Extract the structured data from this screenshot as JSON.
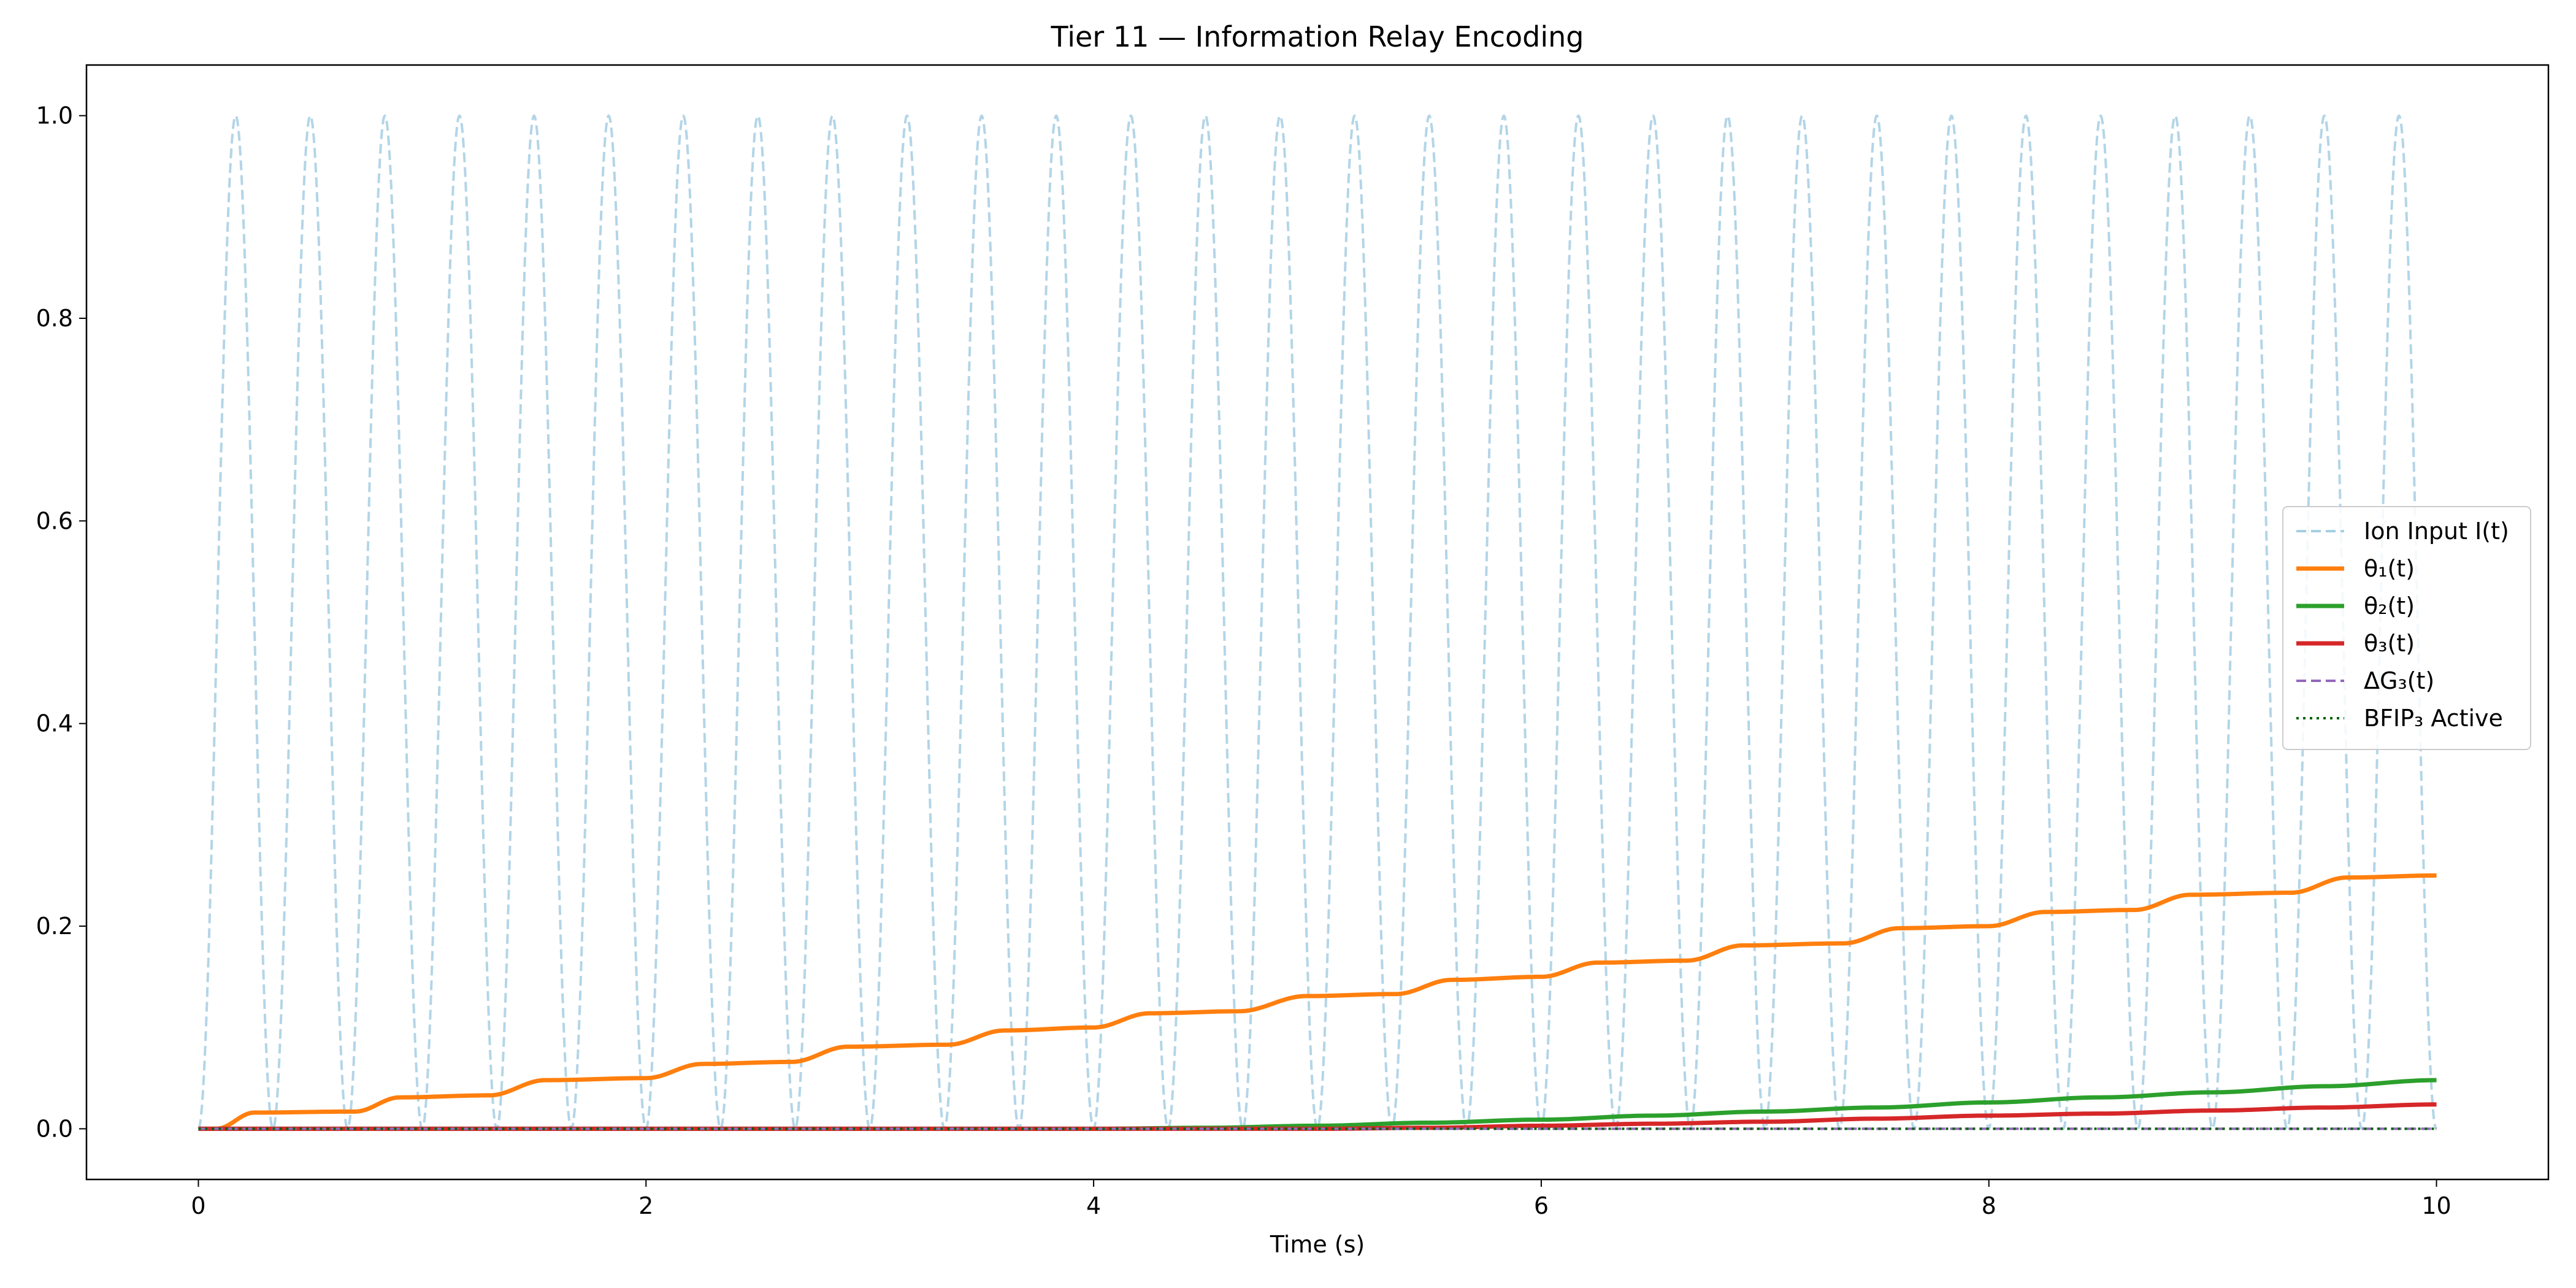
{
  "chart_data": {
    "type": "line",
    "title": "Tier 11 — Information Relay Encoding",
    "xlabel": "Time (s)",
    "ylabel": "",
    "xlim": [
      -0.5,
      10.5
    ],
    "ylim": [
      -0.05,
      1.05
    ],
    "xticks": [
      0,
      2,
      4,
      6,
      8,
      10
    ],
    "yticks": [
      0.0,
      0.2,
      0.4,
      0.6,
      0.8,
      1.0
    ],
    "xtick_labels": [
      "0",
      "2",
      "4",
      "6",
      "8",
      "10"
    ],
    "ytick_labels": [
      "0.0",
      "0.2",
      "0.4",
      "0.6",
      "0.8",
      "1.0"
    ],
    "grid": false,
    "legend_position": "center-right",
    "series": [
      {
        "name": "Ion Input I(t)",
        "color": "#a6cee3",
        "style": "dashed",
        "model": "periodic",
        "period_s": 0.3333,
        "min": 0.0,
        "max": 1.0
      },
      {
        "name": "θ₁(t)",
        "color": "#ff7f0e",
        "style": "solid",
        "x": [
          0,
          0.08,
          0.25,
          0.7,
          0.9,
          1.3,
          1.55,
          2.0,
          2.25,
          2.65,
          2.9,
          3.35,
          3.6,
          4.0,
          4.25,
          4.65,
          4.95,
          5.35,
          5.6,
          6.0,
          6.25,
          6.65,
          6.9,
          7.35,
          7.6,
          8.0,
          8.25,
          8.65,
          8.9,
          9.35,
          9.6,
          10.0
        ],
        "y": [
          0.0,
          0.0,
          0.016,
          0.017,
          0.031,
          0.033,
          0.048,
          0.05,
          0.064,
          0.066,
          0.081,
          0.083,
          0.097,
          0.1,
          0.114,
          0.116,
          0.131,
          0.133,
          0.147,
          0.15,
          0.164,
          0.166,
          0.181,
          0.183,
          0.198,
          0.2,
          0.214,
          0.216,
          0.231,
          0.233,
          0.248,
          0.25
        ]
      },
      {
        "name": "θ₂(t)",
        "color": "#2ca02c",
        "style": "solid",
        "x": [
          0,
          4.0,
          4.5,
          5.0,
          5.5,
          6.0,
          6.5,
          7.0,
          7.5,
          8.0,
          8.5,
          9.0,
          9.5,
          10.0
        ],
        "y": [
          0.0,
          0.0,
          0.001,
          0.003,
          0.006,
          0.009,
          0.013,
          0.017,
          0.021,
          0.026,
          0.031,
          0.036,
          0.042,
          0.048
        ]
      },
      {
        "name": "θ₃(t)",
        "color": "#d62728",
        "style": "solid",
        "x": [
          0,
          5.0,
          5.5,
          6.0,
          6.5,
          7.0,
          7.5,
          8.0,
          8.5,
          9.0,
          9.5,
          10.0
        ],
        "y": [
          0.0,
          0.0,
          0.001,
          0.003,
          0.005,
          0.007,
          0.01,
          0.013,
          0.015,
          0.018,
          0.021,
          0.024
        ]
      },
      {
        "name": "ΔG₃(t)",
        "color": "#9467bd",
        "style": "dashed",
        "x": [
          0,
          10
        ],
        "y": [
          0.0,
          0.0
        ]
      },
      {
        "name": "BFIP₃ Active",
        "color": "#006400",
        "style": "dotted",
        "x": [
          0,
          10
        ],
        "y": [
          0.0,
          0.0
        ]
      }
    ]
  }
}
